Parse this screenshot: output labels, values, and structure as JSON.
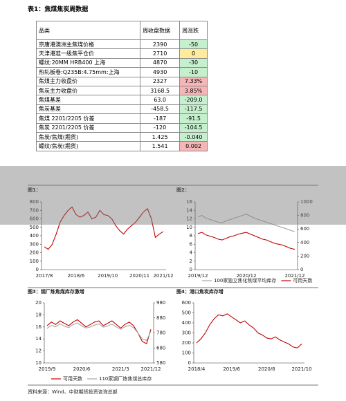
{
  "title": "表1：焦煤焦炭周数据",
  "table": {
    "header": [
      "品类",
      "周收盘数据",
      "周涨跌"
    ],
    "rows": [
      [
        "京唐港澳洲主焦煤价格",
        "2390",
        "-50"
      ],
      [
        "天津港准一级焦平仓价",
        "2710",
        "0"
      ],
      [
        "螺纹:20MM HRB400 上海",
        "4870",
        "-30"
      ],
      [
        "热轧板卷:Q235B:4.75mm:上海",
        "4930",
        "-10"
      ],
      [
        "焦煤主力收盘价",
        "2327",
        "7.33%"
      ],
      [
        "焦炭主力收盘价",
        "3168.5",
        "3.85%"
      ],
      [
        "焦煤基差",
        "63.0",
        "-209.0"
      ],
      [
        "焦炭基差",
        "-458.5",
        "-117.5"
      ],
      [
        "焦煤 2201/2205 价差",
        "-187",
        "-91.5"
      ],
      [
        "焦炭 2201/2205 价差",
        "-120",
        "-104.5"
      ],
      [
        "焦炭/焦煤(期货)",
        "1.425",
        "-0.040"
      ],
      [
        "螺纹/焦炭(期货)",
        "1.541",
        "0.002"
      ]
    ],
    "change_colors": [
      "#c6efce",
      "#ffeb9c",
      "#c6efce",
      "#c6efce",
      "#f4b6b6",
      "#f4b6b6",
      "#c6efce",
      "#c6efce",
      "#c6efce",
      "#c6efce",
      "#c6efce",
      "#f4b6b6"
    ]
  },
  "chart_data": [
    {
      "type": "line",
      "title": "图1：",
      "categories": [
        "2017/8",
        null,
        null,
        null,
        null,
        null,
        null,
        null,
        "2018/6",
        null,
        null,
        null,
        null,
        null,
        null,
        null,
        "2019/10",
        null,
        null,
        null,
        null,
        null,
        null,
        null,
        "2020/11",
        null,
        null,
        null,
        null,
        null,
        "2021/12"
      ],
      "series": [
        {
          "name": null,
          "color": "#c00000",
          "values": [
            270,
            240,
            300,
            420,
            560,
            640,
            700,
            740,
            650,
            620,
            640,
            680,
            600,
            620,
            700,
            650,
            640,
            600,
            520,
            460,
            420,
            480,
            520,
            560,
            620,
            680,
            720,
            600,
            380,
            420,
            450
          ]
        }
      ],
      "ylim": [
        0,
        800
      ],
      "yticks": [
        0,
        100,
        200,
        300,
        400,
        500,
        600,
        700,
        800
      ]
    },
    {
      "type": "line",
      "title": "图2：",
      "categories": [
        "2019/12",
        null,
        null,
        null,
        null,
        null,
        null,
        null,
        null,
        null,
        null,
        null,
        "2020/12",
        null,
        null,
        null,
        null,
        null,
        null,
        null,
        null,
        null,
        null,
        null,
        "2021/12"
      ],
      "series": [
        {
          "name": "100家独立焦化焦煤平均库存",
          "color": "#a6a6a6",
          "axis": "y2",
          "values": [
            780,
            800,
            760,
            740,
            720,
            700,
            690,
            720,
            740,
            760,
            780,
            800,
            820,
            790,
            760,
            740,
            720,
            700,
            680,
            660,
            640,
            620,
            600,
            580,
            560
          ]
        },
        {
          "name": "可用天数",
          "color": "#c00000",
          "values": [
            8.5,
            8.8,
            8.2,
            7.9,
            7.6,
            7.2,
            7.0,
            7.4,
            7.8,
            8.0,
            8.4,
            8.6,
            8.8,
            8.4,
            8.0,
            7.6,
            7.2,
            7.0,
            6.6,
            6.2,
            6.0,
            5.8,
            5.4,
            5.0,
            4.8
          ]
        }
      ],
      "ylim": [
        0,
        16
      ],
      "yticks": [
        0,
        2,
        4,
        6,
        8,
        10,
        12,
        14,
        16
      ],
      "y2lim": [
        0,
        1000
      ],
      "y2ticks": [
        0,
        200,
        400,
        600,
        800,
        1000
      ]
    },
    {
      "type": "line",
      "title": "图3：钢厂炼焦煤库存激增",
      "categories": [
        "2019/9",
        null,
        null,
        null,
        null,
        null,
        null,
        null,
        "2020/6",
        null,
        null,
        null,
        null,
        null,
        null,
        null,
        null,
        "2021/3",
        null,
        null,
        null,
        null,
        null,
        null,
        "2021/12"
      ],
      "series": [
        {
          "name": "可用天数",
          "color": "#c00000",
          "values": [
            16.2,
            16.8,
            16.4,
            17.0,
            16.6,
            16.2,
            16.8,
            17.2,
            16.6,
            16.0,
            16.4,
            16.8,
            17.0,
            16.2,
            16.6,
            17.0,
            16.4,
            15.8,
            16.4,
            16.8,
            16.2,
            15.0,
            13.6,
            13.2,
            15.6
          ]
        },
        {
          "name": "110家钢厂炼焦煤总库存",
          "color": "#a6a6a6",
          "axis": "y2",
          "values": [
            810,
            830,
            820,
            840,
            825,
            815,
            835,
            845,
            828,
            812,
            820,
            832,
            840,
            818,
            826,
            838,
            820,
            804,
            820,
            830,
            815,
            780,
            740,
            730,
            790
          ]
        }
      ],
      "ylim": [
        10,
        20
      ],
      "yticks": [
        10,
        12,
        14,
        16,
        18,
        20
      ],
      "y2lim": [
        580,
        980
      ],
      "y2ticks": [
        580,
        680,
        780,
        880,
        980
      ]
    },
    {
      "type": "line",
      "title": "图4：港口焦炭库存增",
      "categories": [
        "2018/4",
        null,
        null,
        null,
        null,
        null,
        null,
        null,
        "2019/6",
        null,
        null,
        null,
        null,
        null,
        null,
        null,
        "2020/8",
        null,
        null,
        null,
        null,
        null,
        null,
        null,
        "2021/10"
      ],
      "series": [
        {
          "name": null,
          "color": "#c00000",
          "values": [
            200,
            240,
            300,
            380,
            440,
            480,
            470,
            490,
            460,
            430,
            400,
            420,
            380,
            350,
            300,
            280,
            250,
            240,
            260,
            230,
            210,
            190,
            160,
            150,
            190
          ]
        }
      ],
      "ylim": [
        0,
        600
      ],
      "yticks": [
        0,
        100,
        200,
        300,
        400,
        500,
        600
      ]
    }
  ],
  "source": "资料来源：Wind、中财期货投资咨询总部"
}
